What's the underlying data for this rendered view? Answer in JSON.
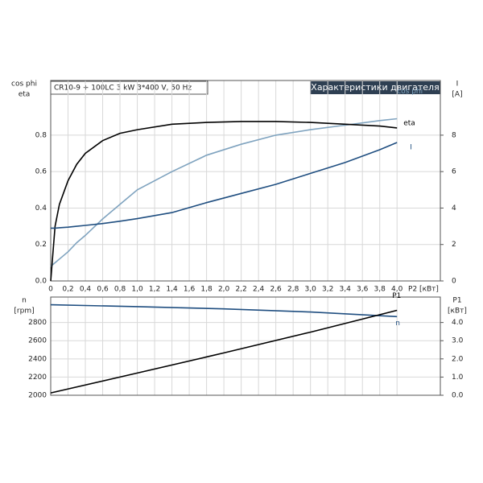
{
  "chart_data": [
    {
      "type": "line",
      "title": "CR10-9 + 100LC  3 kW  3*400 V, 50 Hz",
      "subtitle": "Характеристики двигателя",
      "ylabel": [
        "cos phi",
        "eta"
      ],
      "y2label": [
        "I",
        "[A]"
      ],
      "xlabel": "P2 [кВт]",
      "x": [
        0,
        0.05,
        0.1,
        0.2,
        0.3,
        0.4,
        0.6,
        0.8,
        1.0,
        1.4,
        1.8,
        2.2,
        2.6,
        3.0,
        3.4,
        3.8,
        4.0
      ],
      "series": [
        {
          "name": "cos phi",
          "color": "#7fa3bf",
          "values": [
            0.08,
            0.1,
            0.12,
            0.16,
            0.21,
            0.25,
            0.34,
            0.42,
            0.5,
            0.6,
            0.69,
            0.75,
            0.8,
            0.83,
            0.855,
            0.88,
            0.89
          ]
        },
        {
          "name": "eta",
          "color": "#000000",
          "values": [
            0,
            0.3,
            0.42,
            0.55,
            0.64,
            0.7,
            0.77,
            0.81,
            0.83,
            0.86,
            0.87,
            0.875,
            0.875,
            0.87,
            0.86,
            0.85,
            0.84
          ]
        },
        {
          "name": "I",
          "color": "#1f4e80",
          "axis": "y2",
          "values": [
            2.9,
            2.9,
            2.92,
            2.95,
            3.0,
            3.05,
            3.15,
            3.28,
            3.42,
            3.75,
            4.3,
            4.8,
            5.3,
            5.9,
            6.5,
            7.2,
            7.6
          ]
        }
      ],
      "xlim": [
        0,
        4.5
      ],
      "xticks": [
        0,
        {
          "value": 0.2,
          "label": "0,2"
        },
        {
          "value": 0.4,
          "label": "0,4"
        },
        {
          "value": 0.6,
          "label": "0,6"
        },
        {
          "value": 0.8,
          "label": "0,8"
        },
        {
          "value": 1.0,
          "label": "1,0"
        },
        {
          "value": 1.2,
          "label": "1,2"
        },
        {
          "value": 1.4,
          "label": "1,4"
        },
        {
          "value": 1.6,
          "label": "1,6"
        },
        {
          "value": 1.8,
          "label": "1,8"
        },
        {
          "value": 2.0,
          "label": "2,0"
        },
        {
          "value": 2.2,
          "label": "2,2"
        },
        {
          "value": 2.4,
          "label": "2,4"
        },
        {
          "value": 2.6,
          "label": "2,6"
        },
        {
          "value": 2.8,
          "label": "2,8"
        },
        {
          "value": 3.0,
          "label": "3,0"
        },
        {
          "value": 3.2,
          "label": "3,2"
        },
        {
          "value": 3.4,
          "label": "3,4"
        },
        {
          "value": 3.6,
          "label": "3,6"
        },
        {
          "value": 3.8,
          "label": "3,8"
        },
        {
          "value": 4.0,
          "label": "4,0"
        }
      ],
      "ylim": [
        0,
        1.1
      ],
      "yticks": [
        {
          "value": 0,
          "label": "0.0"
        },
        0.2,
        0.4,
        0.6,
        0.8
      ],
      "y2lim": [
        0,
        11
      ],
      "y2ticks": [
        0,
        2,
        4,
        6,
        8
      ],
      "grid": true
    },
    {
      "type": "line",
      "ylabel": [
        "n",
        "[rpm]"
      ],
      "y2label": [
        "P1",
        "[кВт]"
      ],
      "x": [
        0,
        1,
        2,
        3,
        4
      ],
      "series": [
        {
          "name": "n",
          "color": "#1f4e80",
          "values": [
            2995,
            2975,
            2950,
            2915,
            2865
          ]
        },
        {
          "name": "P1",
          "color": "#000000",
          "axis": "y2",
          "values": [
            0.13,
            1.22,
            2.33,
            3.47,
            4.67
          ]
        }
      ],
      "xlim": [
        0,
        4.5
      ],
      "ylim": [
        2000,
        3080
      ],
      "yticks": [
        2000,
        2200,
        2400,
        2600,
        2800
      ],
      "y2lim": [
        0,
        5.4
      ],
      "y2ticks": [
        {
          "value": 0,
          "label": "0.0"
        },
        {
          "value": 1,
          "label": "1.0"
        },
        {
          "value": 2,
          "label": "2.0"
        },
        {
          "value": 3,
          "label": "3.0"
        },
        {
          "value": 4,
          "label": "4.0"
        }
      ],
      "grid": true
    }
  ]
}
